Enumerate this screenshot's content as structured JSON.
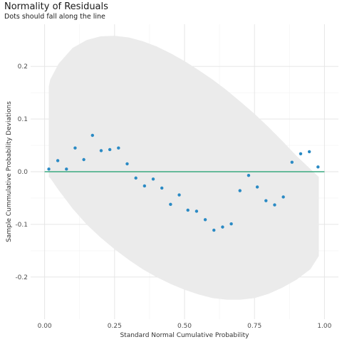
{
  "chart_data": {
    "type": "scatter",
    "title": "Normality of Residuals",
    "subtitle": "Dots should fall along the line",
    "xlabel": "Standard Normal Cumulative Probability",
    "ylabel": "Sample Cummulative Probability Deviations",
    "xlim": [
      -0.05,
      1.05
    ],
    "ylim": [
      -0.28,
      0.28
    ],
    "x_ticks": [
      0.0,
      0.25,
      0.5,
      0.75,
      1.0
    ],
    "x_tick_labels": [
      "0.00",
      "0.25",
      "0.50",
      "0.75",
      "1.00"
    ],
    "y_ticks": [
      -0.2,
      -0.1,
      0.0,
      0.1,
      0.2
    ],
    "y_tick_labels": [
      "-0.2",
      "-0.1",
      "0.0",
      "0.1",
      "0.2"
    ],
    "grid": true,
    "reference_line": {
      "y": 0,
      "x_start": 0.0,
      "x_end": 1.0,
      "color": "#3aaa80"
    },
    "confidence_band": {
      "color": "#ebebeb",
      "x": [
        0.015,
        0.02,
        0.05,
        0.1,
        0.15,
        0.2,
        0.25,
        0.3,
        0.35,
        0.4,
        0.45,
        0.5,
        0.55,
        0.6,
        0.65,
        0.7,
        0.75,
        0.8,
        0.85,
        0.9,
        0.95,
        0.98
      ],
      "upper": [
        0.162,
        0.175,
        0.205,
        0.235,
        0.25,
        0.257,
        0.258,
        0.255,
        0.248,
        0.238,
        0.225,
        0.21,
        0.193,
        0.175,
        0.155,
        0.133,
        0.11,
        0.085,
        0.058,
        0.03,
        0.005,
        -0.01
      ],
      "lower": [
        -0.01,
        -0.012,
        -0.035,
        -0.07,
        -0.1,
        -0.125,
        -0.147,
        -0.167,
        -0.185,
        -0.2,
        -0.213,
        -0.224,
        -0.233,
        -0.24,
        -0.243,
        -0.243,
        -0.24,
        -0.232,
        -0.22,
        -0.205,
        -0.185,
        -0.16
      ]
    },
    "series": [
      {
        "color": "#2a8ac4",
        "x": [
          0.015,
          0.047,
          0.078,
          0.109,
          0.14,
          0.171,
          0.202,
          0.233,
          0.264,
          0.295,
          0.326,
          0.357,
          0.388,
          0.419,
          0.45,
          0.481,
          0.512,
          0.543,
          0.574,
          0.605,
          0.636,
          0.667,
          0.698,
          0.729,
          0.76,
          0.791,
          0.822,
          0.853,
          0.884,
          0.915,
          0.946,
          0.977
        ],
        "y": [
          0.005,
          0.021,
          0.005,
          0.045,
          0.023,
          0.069,
          0.04,
          0.042,
          0.045,
          0.015,
          -0.012,
          -0.027,
          -0.014,
          -0.031,
          -0.062,
          -0.044,
          -0.073,
          -0.075,
          -0.091,
          -0.111,
          -0.105,
          -0.099,
          -0.036,
          -0.007,
          -0.029,
          -0.055,
          -0.063,
          -0.048,
          0.018,
          0.034,
          0.038,
          0.009
        ]
      }
    ]
  }
}
